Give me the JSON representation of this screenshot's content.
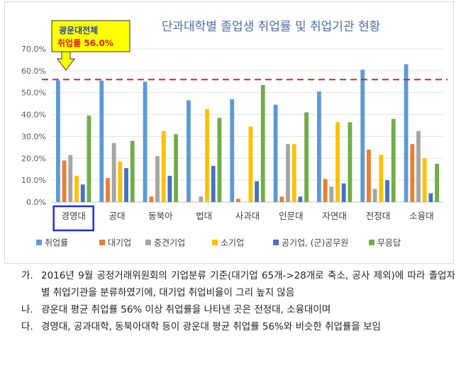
{
  "chart_data": {
    "type": "bar",
    "title": "단과대학별 졸업생 취업률 및 취업기관 현황",
    "categories": [
      "경영대",
      "공대",
      "동북아",
      "법대",
      "사과대",
      "인문대",
      "자연대",
      "전정대",
      "소융대"
    ],
    "ylim": [
      0,
      70
    ],
    "yticks": [
      "0.0%",
      "10.0%",
      "20.0%",
      "30.0%",
      "40.0%",
      "50.0%",
      "60.0%",
      "70.0%"
    ],
    "grid": true,
    "legend_position": "bottom",
    "series": [
      {
        "name": "취업률",
        "color": "#5b9bd5",
        "values": [
          55.6,
          55.5,
          55.0,
          46.5,
          47.0,
          44.5,
          50.5,
          60.5,
          63.0
        ]
      },
      {
        "name": "대기업",
        "color": "#ed7d31",
        "values": [
          19.0,
          11.0,
          2.5,
          0,
          1.5,
          2.5,
          10.5,
          24.0,
          26.5
        ]
      },
      {
        "name": "중견기업",
        "color": "#a5a5a5",
        "values": [
          21.5,
          27.0,
          21.0,
          2.5,
          0,
          26.5,
          7.0,
          6.0,
          32.5
        ]
      },
      {
        "name": "소기업",
        "color": "#ffc000",
        "values": [
          12.0,
          18.5,
          32.5,
          42.5,
          34.5,
          26.5,
          36.5,
          21.5,
          20.0
        ]
      },
      {
        "name": "공기업, (군)공무원",
        "color": "#4472c4",
        "values": [
          8.0,
          15.5,
          12.0,
          16.5,
          9.5,
          2.5,
          8.5,
          10.0,
          4.0
        ]
      },
      {
        "name": "무응답",
        "color": "#70ad47",
        "values": [
          39.5,
          28.0,
          31.0,
          38.5,
          53.5,
          41.0,
          36.5,
          38.0,
          17.5
        ]
      }
    ],
    "reference_line": {
      "value": 56.0,
      "color": "#e02020"
    },
    "callout": {
      "line1": "광운대전체",
      "line2": "취업률 56.0%"
    },
    "highlighted_category": "경영대"
  },
  "notes": [
    {
      "marker": "가.",
      "text": "2016년 9월 공정거래위원회의 기업분류 기준(대기업 65개->28개로 축소, 공사 제외)에 따라 졸업자별 취업기관을 분류하였기에, 대기업 취업비율이 그리 높지 않음"
    },
    {
      "marker": "나.",
      "text": "광운대 평균 취업률 56% 이상 취업률을 나타낸 곳은 전정대, 소융대이며"
    },
    {
      "marker": "다.",
      "text": "경영대, 공과대학, 동북아대학 등이 광운대 평균 취업률 56%와 비슷한 취업률을 보임"
    }
  ]
}
